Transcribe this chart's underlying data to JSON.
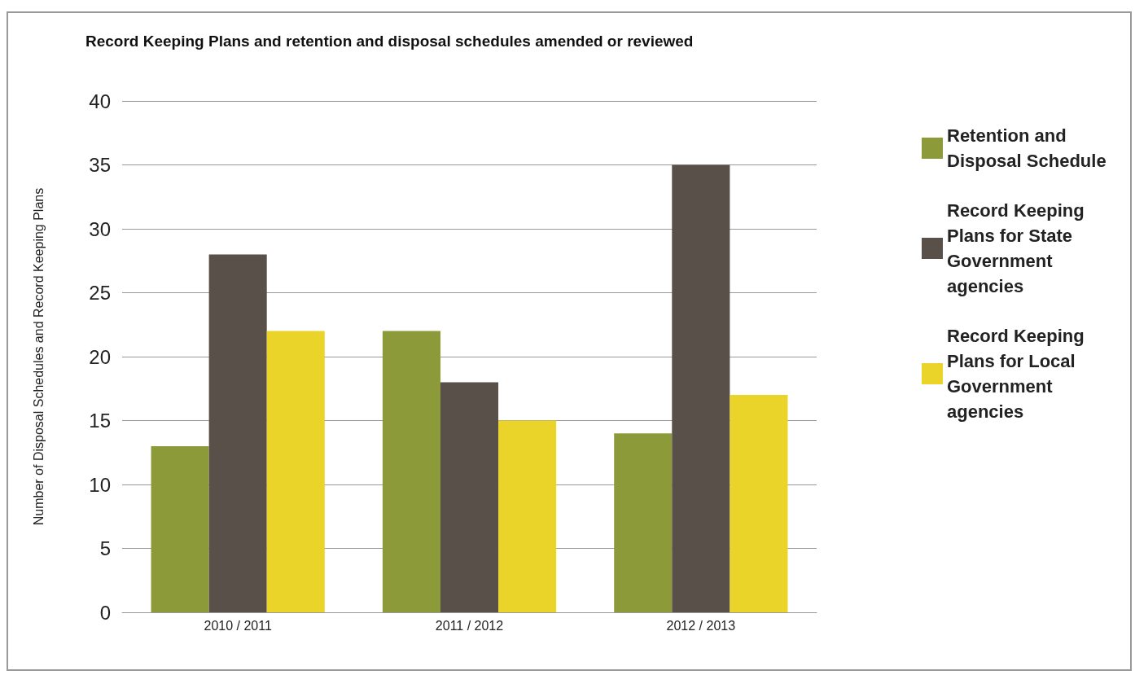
{
  "chart_data": {
    "type": "bar",
    "title": "Record Keeping Plans and retention and disposal schedules amended or reviewed",
    "ylabel": "Number of Disposal Schedules and Record Keeping Plans",
    "categories": [
      "2010 / 2011",
      "2011 / 2012",
      "2012 / 2013"
    ],
    "series": [
      {
        "name": "Retention and Disposal Schedule",
        "color": "#8c9a3a",
        "values": [
          13,
          22,
          14
        ]
      },
      {
        "name": "Record Keeping Plans for State Government agencies",
        "color": "#5a504a",
        "values": [
          28,
          18,
          35
        ]
      },
      {
        "name": "Record Keeping Plans for Local Government agencies",
        "color": "#ebd42a",
        "values": [
          22,
          15,
          17
        ]
      }
    ],
    "ylim": [
      0,
      40
    ],
    "yticks": [
      0,
      5,
      10,
      15,
      20,
      25,
      30,
      35,
      40
    ],
    "grid": "y",
    "legend": "right"
  }
}
